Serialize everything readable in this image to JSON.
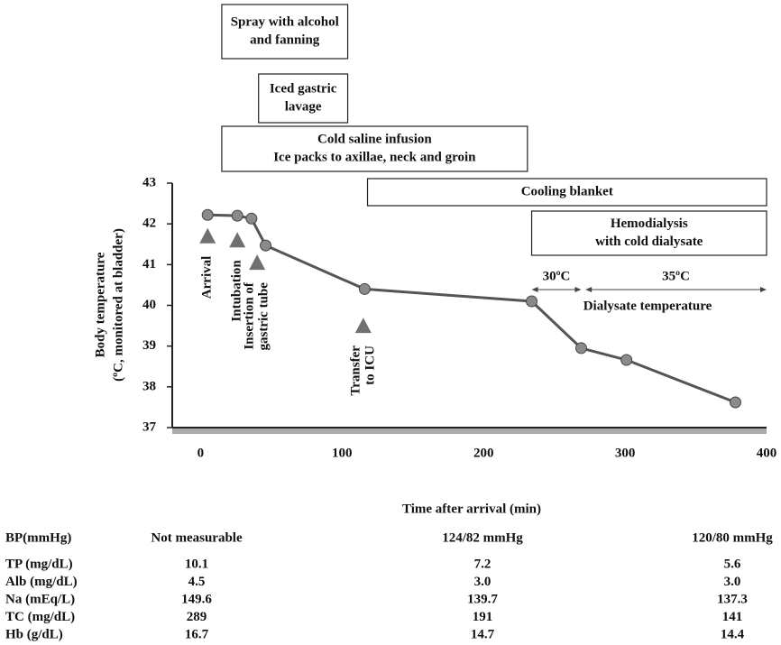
{
  "chart_data": {
    "type": "line",
    "y_label": [
      "Body temperature",
      "(ºC, monitored at bladder)"
    ],
    "x_label": "Time after arrival (min)",
    "xlim": [
      -20,
      400
    ],
    "ylim": [
      37,
      43
    ],
    "xticks": [
      0,
      100,
      200,
      300,
      400
    ],
    "yticks": [
      37,
      38,
      39,
      40,
      41,
      42,
      43
    ],
    "color": "#555555",
    "marker_color": "#8a8a8a",
    "triangle_color": "#707070",
    "x": [
      5,
      26,
      36,
      46,
      116,
      234,
      269,
      301,
      378
    ],
    "values": [
      42.22,
      42.2,
      42.13,
      41.47,
      40.4,
      40.1,
      38.95,
      38.66,
      37.62
    ],
    "interventions": [
      {
        "lines": [
          "Spray with alcohol",
          "and fanning"
        ],
        "start": 15,
        "end": 104
      },
      {
        "lines": [
          "Iced gastric",
          "lavage"
        ],
        "start": 41,
        "end": 104
      },
      {
        "lines": [
          "Cold saline infusion",
          "Ice packs to axillae, neck and groin"
        ],
        "start": 15,
        "end": 231
      },
      {
        "lines": [
          "Cooling blanket"
        ],
        "start": 118,
        "end": 400
      },
      {
        "lines": [
          "Hemodialysis",
          "with cold dialysate"
        ],
        "start": 234,
        "end": 400
      }
    ],
    "annotations": [
      {
        "lines": [
          "Arrival"
        ],
        "x": 5,
        "y": 41.7
      },
      {
        "lines": [
          "Intubation"
        ],
        "x": 26,
        "y": 41.6
      },
      {
        "lines": [
          "Insertion of",
          "gastric tube"
        ],
        "x": 40,
        "y": 41.05
      },
      {
        "lines": [
          "Transfer",
          "to ICU"
        ],
        "x": 115,
        "y": 39.5
      }
    ],
    "dialysate": {
      "label": "Dialysate temperature",
      "arrows": [
        {
          "label": "30ºC",
          "start": 234,
          "end": 269
        },
        {
          "label": "35ºC",
          "start": 272,
          "end": 400
        }
      ]
    }
  },
  "table": {
    "rows": [
      {
        "label": "BP(mmHg)",
        "values": [
          "Not measurable",
          "124/82 mmHg",
          "120/80 mmHg"
        ]
      },
      {
        "label": "TP (mg/dL)",
        "values": [
          "10.1",
          "7.2",
          "5.6"
        ]
      },
      {
        "label": "Alb (mg/dL)",
        "values": [
          "4.5",
          "3.0",
          "3.0"
        ]
      },
      {
        "label": "Na (mEq/L)",
        "values": [
          "149.6",
          "139.7",
          "137.3"
        ]
      },
      {
        "label": "TC (mg/dL)",
        "values": [
          "289",
          "191",
          "141"
        ]
      },
      {
        "label": "Hb (g/dL)",
        "values": [
          "16.7",
          "14.7",
          "14.4"
        ]
      }
    ]
  }
}
